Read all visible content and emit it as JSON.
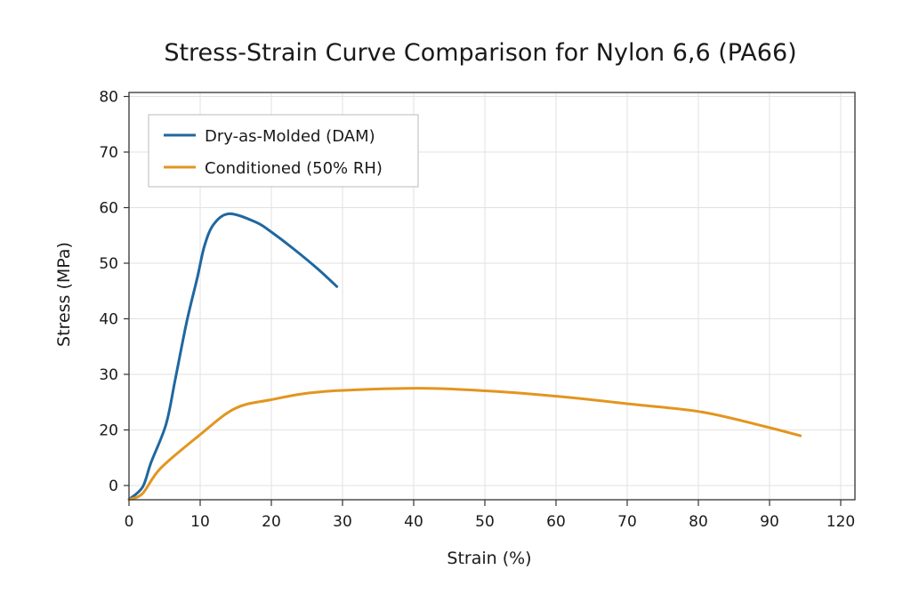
{
  "chart_data": {
    "type": "line",
    "title": "Stress-Strain Curve Comparison for Nylon 6,6 (PA66)",
    "xlabel": "Strain (%)",
    "ylabel": "Stress (MPa)",
    "x_tick_labels": [
      "0",
      "10",
      "20",
      "30",
      "40",
      "50",
      "60",
      "70",
      "80",
      "90",
      "120"
    ],
    "y_tick_labels": [
      "0",
      "20",
      "30",
      "40",
      "50",
      "60",
      "70",
      "80"
    ],
    "grid": true,
    "legend_position": "top-left",
    "series": [
      {
        "name": "Dry-as-Molded (DAM)",
        "color": "#1f67a0",
        "points": [
          [
            0,
            -5
          ],
          [
            1.9,
            -0.6
          ],
          [
            3.1,
            8.3
          ],
          [
            5.2,
            21
          ],
          [
            6.5,
            29.1
          ],
          [
            8.1,
            39.4
          ],
          [
            9.6,
            47.4
          ],
          [
            10.6,
            53.1
          ],
          [
            11.9,
            57
          ],
          [
            14.1,
            58.9
          ],
          [
            17.8,
            57.4
          ],
          [
            19.8,
            55.8
          ],
          [
            23.1,
            52.6
          ],
          [
            26.5,
            49
          ],
          [
            29.2,
            45.8
          ]
        ]
      },
      {
        "name": "Conditioned (50% RH)",
        "color": "#e3951f",
        "points": [
          [
            0,
            -5
          ],
          [
            1.9,
            -2.9
          ],
          [
            4.4,
            6.1
          ],
          [
            9.8,
            17.9
          ],
          [
            14.8,
            23.8
          ],
          [
            19.8,
            25.4
          ],
          [
            27.3,
            26.9
          ],
          [
            40.6,
            27.5
          ],
          [
            50.6,
            27
          ],
          [
            60.6,
            26
          ],
          [
            70.9,
            24.6
          ],
          [
            80.6,
            23.2
          ],
          [
            89.4,
            20.6
          ],
          [
            103,
            17.9
          ]
        ]
      }
    ]
  }
}
